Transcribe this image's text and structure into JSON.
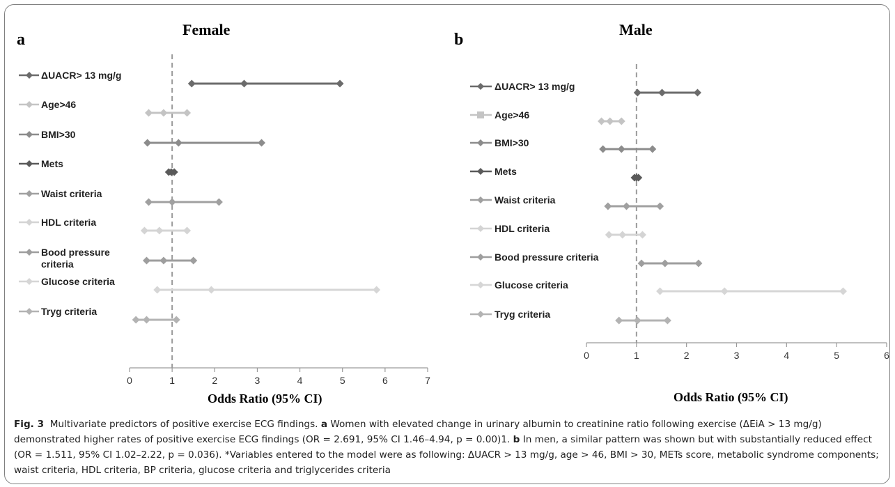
{
  "figure": {
    "caption_label": "Fig. 3",
    "caption_pre_a": "Multivariate predictors of positive exercise ECG findings.",
    "caption_a": "a",
    "caption_text_a": "Women with elevated change in urinary albumin to creatinine ratio following exercise (ΔEiA > 13 mg/g) demonstrated higher rates of positive exercise ECG findings (OR = 2.691, 95% CI 1.46–4.94, p = 0.00)1.",
    "caption_b": "b",
    "caption_text_b": "In men, a similar pattern was shown but with substantially reduced effect (OR = 1.511, 95% CI 1.02–2.22, p = 0.036). *Variables entered to the model were as following: ΔUACR > 13 mg/g, age > 46, BMI > 30, METs score, metabolic syndrome components; waist criteria, HDL criteria, BP criteria, glucose criteria and triglycerides criteria"
  },
  "chart_data": [
    {
      "type": "scatter",
      "panel_letter": "a",
      "title": "Female",
      "xlabel": "Odds Ratio (95% CI)",
      "xlim": [
        0,
        7
      ],
      "xticks": [
        "0",
        "1",
        "2",
        "3",
        "4",
        "5",
        "6",
        "7"
      ],
      "reference_line": 1,
      "series": [
        {
          "name": "ΔUACR> 13 mg/g",
          "lower": 1.46,
          "or": 2.691,
          "upper": 4.94,
          "color": "#6b6b6b"
        },
        {
          "name": "Age>46",
          "lower": 0.45,
          "or": 0.8,
          "upper": 1.35,
          "color": "#c4c4c4"
        },
        {
          "name": "BMI>30",
          "lower": 0.42,
          "or": 1.15,
          "upper": 3.1,
          "color": "#8c8c8c"
        },
        {
          "name": "Mets",
          "lower": 0.92,
          "or": 0.98,
          "upper": 1.05,
          "color": "#5a5a5a"
        },
        {
          "name": "Waist criteria",
          "lower": 0.45,
          "or": 1.0,
          "upper": 2.1,
          "color": "#a0a0a0"
        },
        {
          "name": "HDL criteria",
          "lower": 0.35,
          "or": 0.7,
          "upper": 1.35,
          "color": "#d4d4d4"
        },
        {
          "name": "Bood pressure criteria",
          "lower": 0.4,
          "or": 0.8,
          "upper": 1.5,
          "color": "#9e9e9e"
        },
        {
          "name": "Glucose criteria",
          "lower": 0.65,
          "or": 1.92,
          "upper": 5.8,
          "color": "#d6d6d6"
        },
        {
          "name": "Tryg criteria",
          "lower": 0.15,
          "or": 0.4,
          "upper": 1.1,
          "color": "#b3b3b3"
        }
      ]
    },
    {
      "type": "scatter",
      "panel_letter": "b",
      "title": "Male",
      "xlabel": "Odds Ratio (95% CI)",
      "xlim": [
        0,
        6
      ],
      "xticks": [
        "0",
        "1",
        "2",
        "3",
        "4",
        "5",
        "6"
      ],
      "reference_line": 1,
      "series": [
        {
          "name": "ΔUACR> 13 mg/g",
          "lower": 1.02,
          "or": 1.511,
          "upper": 2.22,
          "color": "#6b6b6b"
        },
        {
          "name": "Age>46",
          "lower": 0.3,
          "or": 0.47,
          "upper": 0.7,
          "color": "#c4c4c4"
        },
        {
          "name": "BMI>30",
          "lower": 0.33,
          "or": 0.7,
          "upper": 1.32,
          "color": "#8c8c8c"
        },
        {
          "name": "Mets",
          "lower": 0.96,
          "or": 1.0,
          "upper": 1.04,
          "color": "#5a5a5a"
        },
        {
          "name": "Waist criteria",
          "lower": 0.43,
          "or": 0.8,
          "upper": 1.47,
          "color": "#a0a0a0"
        },
        {
          "name": "HDL criteria",
          "lower": 0.45,
          "or": 0.72,
          "upper": 1.12,
          "color": "#d4d4d4"
        },
        {
          "name": "Bood pressure criteria",
          "lower": 1.1,
          "or": 1.57,
          "upper": 2.24,
          "color": "#9e9e9e"
        },
        {
          "name": "Glucose criteria",
          "lower": 1.47,
          "or": 2.76,
          "upper": 5.13,
          "color": "#d6d6d6"
        },
        {
          "name": "Tryg criteria",
          "lower": 0.65,
          "or": 1.02,
          "upper": 1.62,
          "color": "#b3b3b3"
        }
      ]
    }
  ]
}
